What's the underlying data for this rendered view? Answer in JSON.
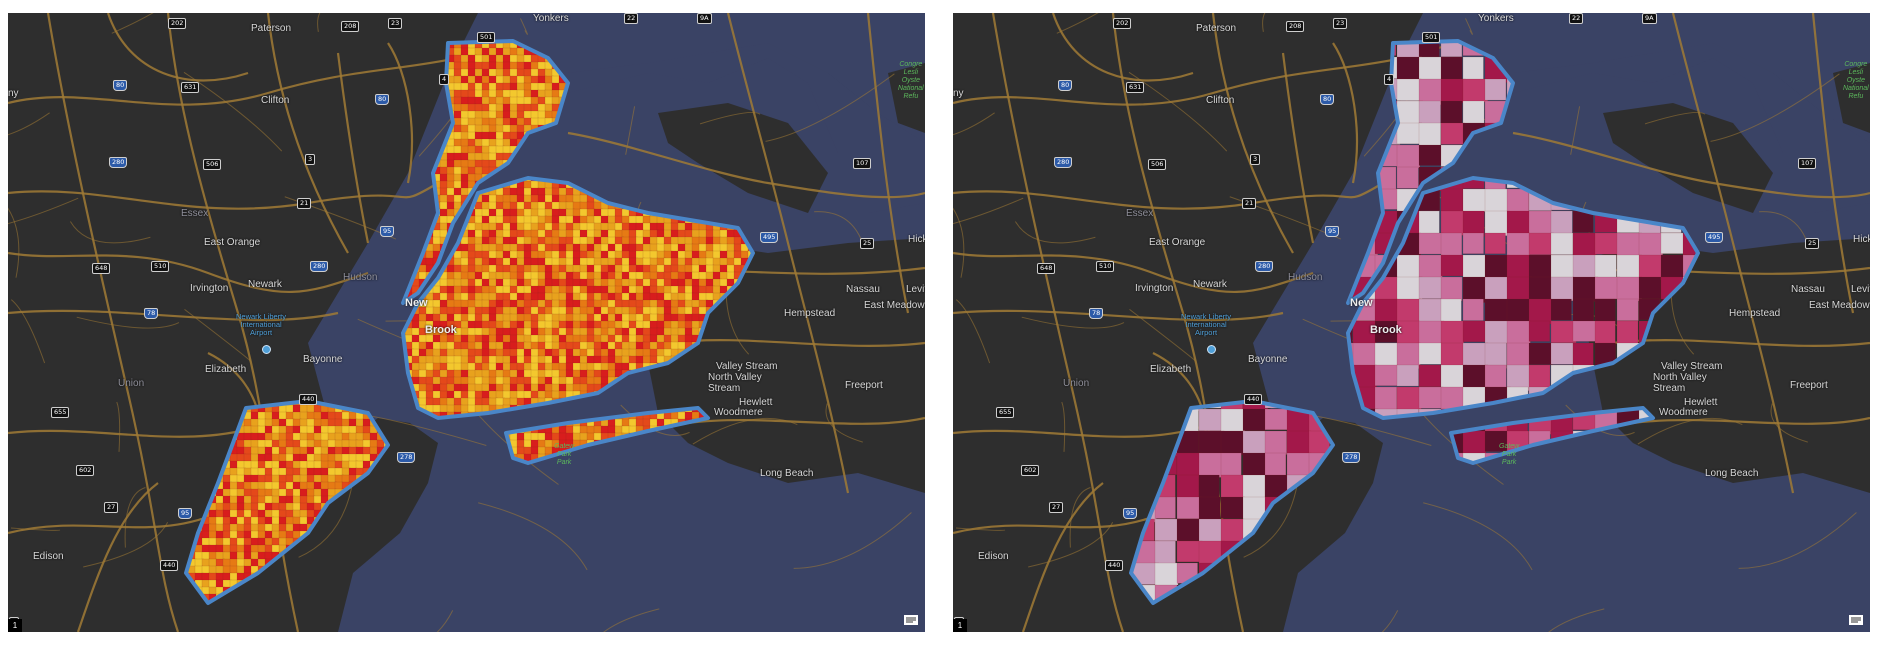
{
  "panels": [
    {
      "id": "left",
      "thematic_ramp": [
        "#f3c82e",
        "#e8a21d",
        "#e67a14",
        "#e4491a",
        "#d81d1d"
      ]
    },
    {
      "id": "right",
      "thematic_ramp": [
        "#d9d4d9",
        "#c9a0bd",
        "#c96e9c",
        "#c23a6c",
        "#a3184a",
        "#5c0f2a"
      ]
    }
  ],
  "colors": {
    "water": "#3a4365",
    "land": "#2e2e2e",
    "roads": "#a07a35",
    "boundary": "#4a86c8"
  },
  "labels": {
    "cities": [
      {
        "key": "paterson",
        "text": "Paterson"
      },
      {
        "key": "clifton",
        "text": "Clifton"
      },
      {
        "key": "essex",
        "text": "Essex"
      },
      {
        "key": "east_orange",
        "text": "East Orange"
      },
      {
        "key": "newark",
        "text": "Newark"
      },
      {
        "key": "irvington",
        "text": "Irvington"
      },
      {
        "key": "hudson",
        "text": "Hudson"
      },
      {
        "key": "bayonne",
        "text": "Bayonne"
      },
      {
        "key": "union",
        "text": "Union"
      },
      {
        "key": "elizabeth",
        "text": "Elizabeth"
      },
      {
        "key": "edison",
        "text": "Edison"
      },
      {
        "key": "new_york",
        "text": "New"
      },
      {
        "key": "brooklyn",
        "text": "Brook"
      },
      {
        "key": "yonkers",
        "text": "Yonkers"
      },
      {
        "key": "nassau",
        "text": "Nassau"
      },
      {
        "key": "hempstead",
        "text": "Hempstead"
      },
      {
        "key": "east_meadow",
        "text": "East Meadow"
      },
      {
        "key": "levittown",
        "text": "Levit"
      },
      {
        "key": "hicksville",
        "text": "Hick"
      },
      {
        "key": "valley_stream",
        "text": "Valley Stream"
      },
      {
        "key": "north_valley_stream",
        "text": "North Valley\nStream"
      },
      {
        "key": "hewlett",
        "text": "Hewlett"
      },
      {
        "key": "woodmere",
        "text": "Woodmere"
      },
      {
        "key": "freeport",
        "text": "Freeport"
      },
      {
        "key": "long_beach",
        "text": "Long Beach"
      },
      {
        "key": "ny_label",
        "text": "ny"
      }
    ],
    "airport": "Newark Liberty\nInternational\nAirport",
    "park_top": "Congre\nLesli\nOyste\nNational\nRefu",
    "park_bay": "Gatew\nPark\nPark"
  },
  "shields": [
    {
      "key": "s202",
      "text": "202"
    },
    {
      "key": "s208",
      "text": "208"
    },
    {
      "key": "s23",
      "text": "23"
    },
    {
      "key": "s501",
      "text": "501"
    },
    {
      "key": "s80a",
      "text": "80"
    },
    {
      "key": "s631",
      "text": "631"
    },
    {
      "key": "s4",
      "text": "4"
    },
    {
      "key": "s80b",
      "text": "80"
    },
    {
      "key": "s280",
      "text": "280"
    },
    {
      "key": "s506",
      "text": "506"
    },
    {
      "key": "s3",
      "text": "3"
    },
    {
      "key": "s21",
      "text": "21"
    },
    {
      "key": "s95a",
      "text": "95"
    },
    {
      "key": "s648",
      "text": "648"
    },
    {
      "key": "s510",
      "text": "510"
    },
    {
      "key": "s280b",
      "text": "280"
    },
    {
      "key": "s78",
      "text": "78"
    },
    {
      "key": "s440",
      "text": "440"
    },
    {
      "key": "s655",
      "text": "655"
    },
    {
      "key": "s602",
      "text": "602"
    },
    {
      "key": "s27",
      "text": "27"
    },
    {
      "key": "s95b",
      "text": "95"
    },
    {
      "key": "s440b",
      "text": "440"
    },
    {
      "key": "s1",
      "text": "1"
    },
    {
      "key": "s278",
      "text": "278"
    },
    {
      "key": "s495",
      "text": "495"
    },
    {
      "key": "s107",
      "text": "107"
    },
    {
      "key": "s25",
      "text": "25"
    },
    {
      "key": "s9a",
      "text": "9A"
    },
    {
      "key": "s22",
      "text": "22"
    }
  ],
  "controls": {
    "zoom_badge": "1",
    "basemap_icon": "basemap-gallery-icon"
  }
}
